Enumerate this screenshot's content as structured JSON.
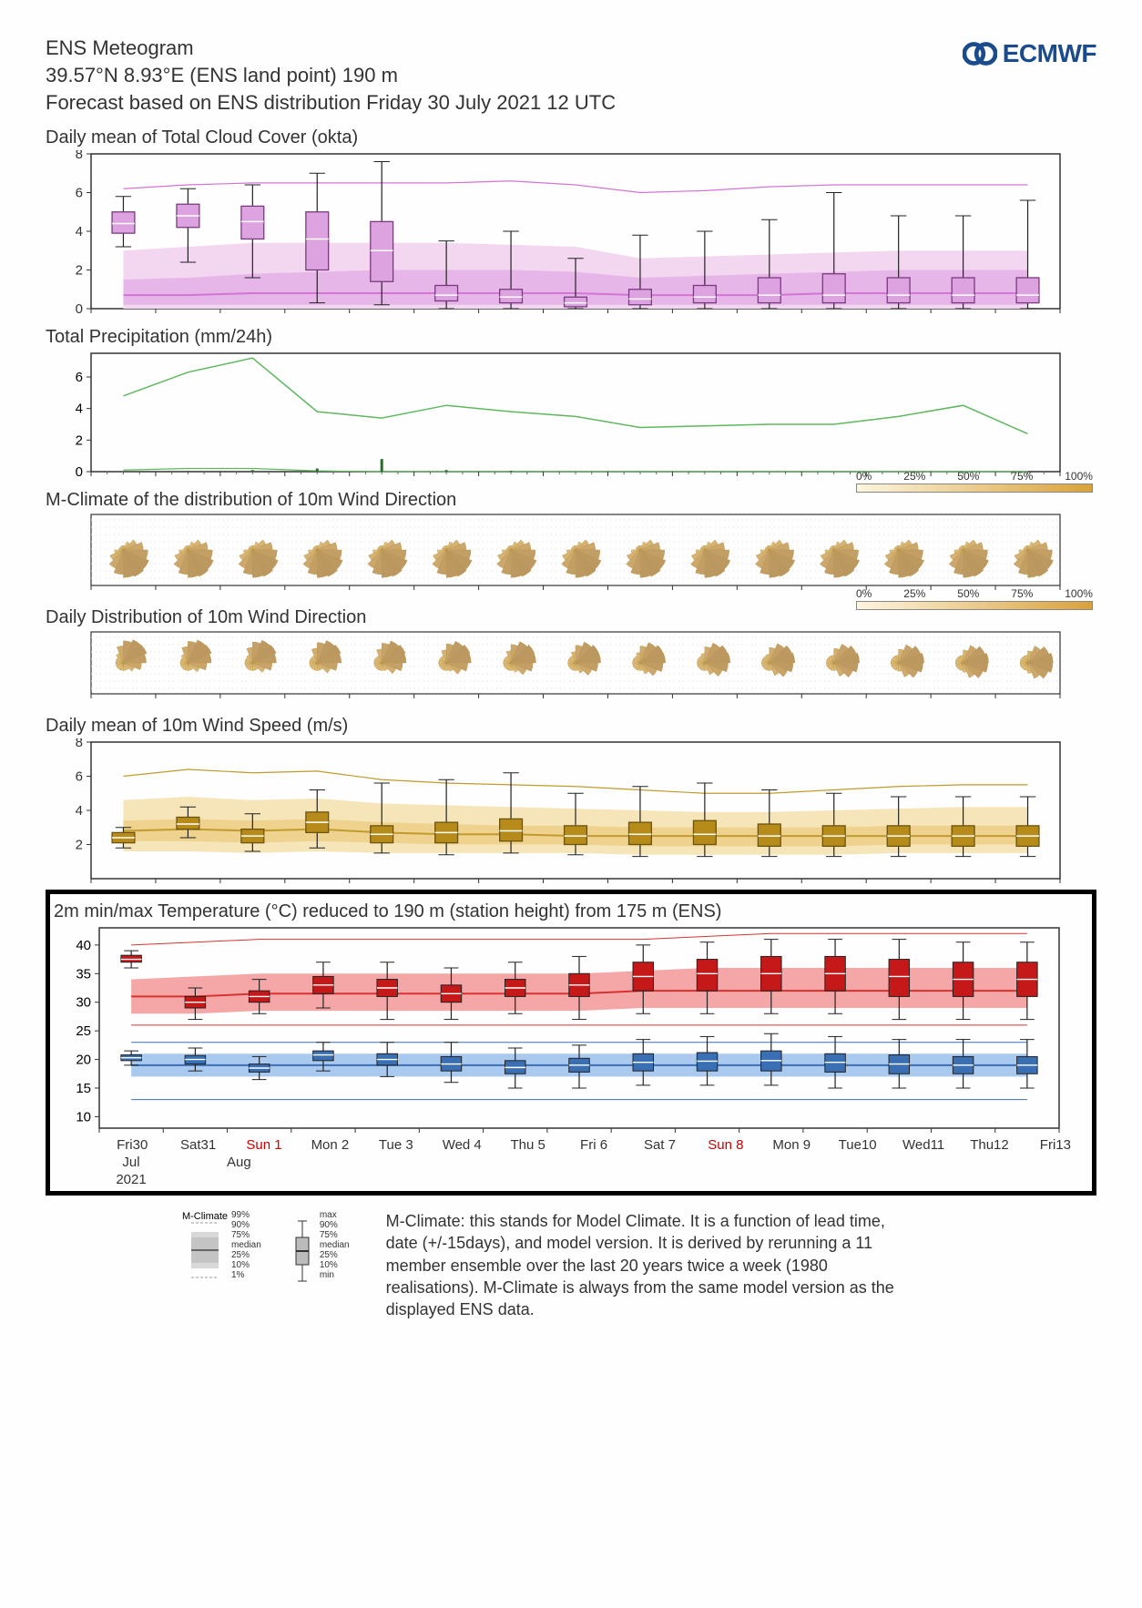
{
  "header": {
    "title1": "ENS Meteogram",
    "title2": " 39.57°N 8.93°E (ENS land point) 190 m",
    "title3": "Forecast based on ENS distribution Friday 30 July 2021 12 UTC"
  },
  "logo_text": "ECMWF",
  "gradient_legend": {
    "ticks": [
      "0%",
      "25%",
      "50%",
      "75%",
      "100%"
    ]
  },
  "xaxis": {
    "days": [
      {
        "label": "Fri30",
        "sun": false
      },
      {
        "label": "Sat31",
        "sun": false
      },
      {
        "label": "Sun 1",
        "sun": true
      },
      {
        "label": "Mon 2",
        "sun": false
      },
      {
        "label": "Tue 3",
        "sun": false
      },
      {
        "label": "Wed 4",
        "sun": false
      },
      {
        "label": "Thu 5",
        "sun": false
      },
      {
        "label": "Fri 6",
        "sun": false
      },
      {
        "label": "Sat 7",
        "sun": false
      },
      {
        "label": "Sun 8",
        "sun": true
      },
      {
        "label": "Mon 9",
        "sun": false
      },
      {
        "label": "Tue10",
        "sun": false
      },
      {
        "label": "Wed11",
        "sun": false
      },
      {
        "label": "Thu12",
        "sun": false
      },
      {
        "label": "Fri13",
        "sun": false
      }
    ],
    "months": [
      "Jul",
      "Aug"
    ],
    "year": "2021"
  },
  "cloud": {
    "title": "Daily mean of Total Cloud Cover (okta)",
    "ylim": [
      0,
      8
    ],
    "yticks": [
      0,
      2,
      4,
      6,
      8
    ],
    "colors": {
      "band_outer": "#f3d6f0",
      "band_inner": "#e6b6e8",
      "line": "#d573d6",
      "box_fill": "#dca3e0",
      "box_stroke": "#7b3a80",
      "whisker": "#333"
    },
    "climate": {
      "p99": [
        6.2,
        6.4,
        6.5,
        6.5,
        6.5,
        6.5,
        6.6,
        6.4,
        6.0,
        6.1,
        6.3,
        6.4,
        6.4,
        6.4,
        6.4
      ],
      "p90": [
        3.0,
        3.2,
        3.4,
        3.4,
        3.4,
        3.4,
        3.3,
        3.2,
        2.6,
        2.7,
        2.8,
        2.9,
        3.0,
        3.0,
        3.0
      ],
      "p75": [
        1.5,
        1.6,
        1.8,
        1.9,
        2.0,
        2.0,
        2.0,
        1.9,
        1.6,
        1.7,
        1.8,
        1.9,
        2.0,
        2.0,
        2.0
      ],
      "median": [
        0.7,
        0.7,
        0.8,
        0.8,
        0.8,
        0.8,
        0.8,
        0.8,
        0.7,
        0.7,
        0.7,
        0.8,
        0.8,
        0.8,
        0.8
      ],
      "p25": [
        0.2,
        0.2,
        0.2,
        0.2,
        0.2,
        0.2,
        0.2,
        0.2,
        0.2,
        0.2,
        0.2,
        0.2,
        0.2,
        0.2,
        0.2
      ],
      "p10": [
        0.0,
        0.0,
        0.0,
        0.0,
        0.0,
        0.0,
        0.0,
        0.0,
        0.0,
        0.0,
        0.0,
        0.0,
        0.0,
        0.0,
        0.0
      ]
    },
    "boxes": [
      {
        "min": 3.2,
        "q1": 3.9,
        "med": 4.4,
        "q3": 5.0,
        "max": 5.8
      },
      {
        "min": 2.4,
        "q1": 4.2,
        "med": 4.8,
        "q3": 5.4,
        "max": 6.2
      },
      {
        "min": 1.6,
        "q1": 3.6,
        "med": 4.5,
        "q3": 5.3,
        "max": 6.4
      },
      {
        "min": 0.3,
        "q1": 2.0,
        "med": 3.6,
        "q3": 5.0,
        "max": 7.0
      },
      {
        "min": 0.2,
        "q1": 1.4,
        "med": 3.0,
        "q3": 4.5,
        "max": 7.6
      },
      {
        "min": 0.0,
        "q1": 0.4,
        "med": 0.7,
        "q3": 1.2,
        "max": 3.5
      },
      {
        "min": 0.0,
        "q1": 0.3,
        "med": 0.6,
        "q3": 1.0,
        "max": 4.0
      },
      {
        "min": 0.0,
        "q1": 0.1,
        "med": 0.3,
        "q3": 0.6,
        "max": 2.6
      },
      {
        "min": 0.0,
        "q1": 0.2,
        "med": 0.5,
        "q3": 1.0,
        "max": 3.8
      },
      {
        "min": 0.0,
        "q1": 0.3,
        "med": 0.6,
        "q3": 1.2,
        "max": 4.0
      },
      {
        "min": 0.0,
        "q1": 0.3,
        "med": 0.7,
        "q3": 1.6,
        "max": 4.6
      },
      {
        "min": 0.0,
        "q1": 0.3,
        "med": 0.7,
        "q3": 1.8,
        "max": 6.0
      },
      {
        "min": 0.0,
        "q1": 0.3,
        "med": 0.7,
        "q3": 1.6,
        "max": 4.8
      },
      {
        "min": 0.0,
        "q1": 0.3,
        "med": 0.7,
        "q3": 1.6,
        "max": 4.8
      },
      {
        "min": 0.0,
        "q1": 0.3,
        "med": 0.7,
        "q3": 1.6,
        "max": 5.6
      }
    ]
  },
  "precip": {
    "title": "Total Precipitation (mm/24h)",
    "ylim": [
      0,
      7.5
    ],
    "yticks": [
      0,
      2,
      4,
      6
    ],
    "colors": {
      "line": "#5fb85f",
      "bar": "#2b6a2b"
    },
    "p99": [
      4.8,
      6.3,
      7.2,
      3.8,
      3.4,
      4.2,
      3.8,
      3.5,
      2.8,
      2.9,
      3.0,
      3.0,
      3.5,
      4.2,
      2.4
    ],
    "median": [
      0.1,
      0.2,
      0.2,
      0.05,
      0.0,
      0.0,
      0.0,
      0.0,
      0.0,
      0.0,
      0.0,
      0.0,
      0.0,
      0.0,
      0.0
    ],
    "bars": [
      0.0,
      0.05,
      0.1,
      0.2,
      0.8,
      0.1,
      0.05,
      0.0,
      0,
      0,
      0,
      0,
      0,
      0,
      0
    ]
  },
  "wind_mclimate": {
    "title": "M-Climate of the distribution of 10m Wind Direction"
  },
  "wind_daily": {
    "title": "Daily Distribution of 10m Wind Direction"
  },
  "wind_speed": {
    "title": "Daily mean of 10m Wind Speed (m/s)",
    "ylim": [
      0,
      8
    ],
    "yticks": [
      2,
      4,
      6,
      8
    ],
    "colors": {
      "band_outer": "#f6e5b8",
      "band_inner": "#eed28e",
      "line": "#c29b2e",
      "box_fill": "#b78b1a",
      "box_stroke": "#6b5410"
    },
    "climate": {
      "p99": [
        6.0,
        6.4,
        6.2,
        6.3,
        5.8,
        5.6,
        5.5,
        5.4,
        5.2,
        5.0,
        5.0,
        5.2,
        5.4,
        5.5,
        5.5
      ],
      "p90": [
        4.6,
        4.8,
        4.6,
        4.7,
        4.4,
        4.3,
        4.2,
        4.1,
        4.0,
        3.9,
        3.9,
        4.0,
        4.1,
        4.2,
        4.2
      ],
      "p75": [
        3.4,
        3.5,
        3.4,
        3.5,
        3.3,
        3.2,
        3.1,
        3.1,
        3.0,
        3.0,
        3.0,
        3.0,
        3.1,
        3.1,
        3.1
      ],
      "median": [
        2.8,
        2.9,
        2.8,
        2.9,
        2.7,
        2.6,
        2.6,
        2.5,
        2.5,
        2.5,
        2.5,
        2.5,
        2.5,
        2.5,
        2.5
      ],
      "p25": [
        2.2,
        2.2,
        2.1,
        2.2,
        2.1,
        2.0,
        2.0,
        2.0,
        1.9,
        1.9,
        1.9,
        1.9,
        2.0,
        2.0,
        2.0
      ],
      "p10": [
        1.6,
        1.6,
        1.5,
        1.6,
        1.5,
        1.5,
        1.5,
        1.5,
        1.4,
        1.4,
        1.4,
        1.4,
        1.5,
        1.5,
        1.5
      ]
    },
    "boxes": [
      {
        "min": 1.8,
        "q1": 2.1,
        "med": 2.4,
        "q3": 2.7,
        "max": 3.0
      },
      {
        "min": 2.4,
        "q1": 2.9,
        "med": 3.2,
        "q3": 3.6,
        "max": 4.2
      },
      {
        "min": 1.6,
        "q1": 2.1,
        "med": 2.5,
        "q3": 2.9,
        "max": 3.8
      },
      {
        "min": 1.8,
        "q1": 2.7,
        "med": 3.3,
        "q3": 3.9,
        "max": 5.2
      },
      {
        "min": 1.5,
        "q1": 2.1,
        "med": 2.6,
        "q3": 3.1,
        "max": 5.6
      },
      {
        "min": 1.4,
        "q1": 2.1,
        "med": 2.7,
        "q3": 3.3,
        "max": 5.8
      },
      {
        "min": 1.5,
        "q1": 2.2,
        "med": 2.8,
        "q3": 3.5,
        "max": 6.2
      },
      {
        "min": 1.4,
        "q1": 2.0,
        "med": 2.5,
        "q3": 3.1,
        "max": 5.0
      },
      {
        "min": 1.3,
        "q1": 2.0,
        "med": 2.6,
        "q3": 3.3,
        "max": 5.4
      },
      {
        "min": 1.3,
        "q1": 2.0,
        "med": 2.6,
        "q3": 3.4,
        "max": 5.6
      },
      {
        "min": 1.3,
        "q1": 1.9,
        "med": 2.5,
        "q3": 3.2,
        "max": 5.2
      },
      {
        "min": 1.3,
        "q1": 1.9,
        "med": 2.5,
        "q3": 3.1,
        "max": 5.0
      },
      {
        "min": 1.3,
        "q1": 1.9,
        "med": 2.5,
        "q3": 3.1,
        "max": 4.8
      },
      {
        "min": 1.3,
        "q1": 1.9,
        "med": 2.5,
        "q3": 3.1,
        "max": 4.8
      },
      {
        "min": 1.3,
        "q1": 1.9,
        "med": 2.5,
        "q3": 3.1,
        "max": 4.8
      }
    ]
  },
  "temp": {
    "title": "2m min/max Temperature (°C) reduced to 190 m (station height) from 175 m (ENS)",
    "ylim": [
      8,
      43
    ],
    "yticks": [
      10,
      15,
      20,
      25,
      30,
      35,
      40
    ],
    "colors": {
      "max_band_outer": "#fbd4d4",
      "max_band_inner": "#f5a7a7",
      "max_line": "#d83232",
      "max_box": "#c51818",
      "min_band_outer": "#d4e4f9",
      "min_band_inner": "#a9c9ef",
      "min_line": "#3b6fb5",
      "min_box": "#3a6fb3"
    },
    "max_climate": {
      "p99": [
        40,
        40.5,
        41,
        41,
        41,
        41,
        41,
        41,
        41,
        41.5,
        42,
        42,
        42,
        42,
        42
      ],
      "p75": [
        34,
        34.5,
        35,
        35,
        35,
        35,
        35,
        35,
        35.5,
        36,
        36,
        36,
        36,
        36,
        36
      ],
      "median": [
        31,
        31,
        31.5,
        31.5,
        31.5,
        31.5,
        31.5,
        31.5,
        32,
        32,
        32,
        32,
        32,
        32,
        32
      ],
      "p25": [
        28,
        28,
        28.5,
        28.5,
        28.5,
        28.5,
        28.5,
        28.5,
        29,
        29,
        29,
        29,
        29,
        29,
        29
      ],
      "p1": [
        26,
        26,
        26,
        26,
        26,
        26,
        26,
        26,
        26,
        26,
        26,
        26,
        26,
        26,
        26
      ]
    },
    "min_climate": {
      "p99": [
        23,
        23,
        23,
        23,
        23,
        23,
        23,
        23,
        23,
        23,
        23,
        23,
        23,
        23,
        23
      ],
      "p75": [
        21,
        21,
        21,
        21,
        21,
        21,
        21,
        21,
        21,
        21,
        21,
        21,
        21,
        21,
        21
      ],
      "median": [
        19,
        19,
        19,
        19,
        19,
        19,
        19,
        19,
        19,
        19,
        19,
        19,
        19,
        19,
        19
      ],
      "p25": [
        17,
        17,
        17,
        17,
        17,
        17,
        17,
        17,
        17,
        17,
        17,
        17,
        17,
        17,
        17
      ],
      "p1": [
        13,
        13,
        13,
        13,
        13,
        13,
        13,
        13,
        13,
        13,
        13,
        13,
        13,
        13,
        13
      ]
    },
    "max_boxes": [
      {
        "min": 36,
        "q1": 37,
        "med": 37.5,
        "q3": 38.2,
        "max": 39
      },
      {
        "min": 27,
        "q1": 29,
        "med": 30,
        "q3": 31,
        "max": 32.5
      },
      {
        "min": 28,
        "q1": 30,
        "med": 31,
        "q3": 32,
        "max": 34
      },
      {
        "min": 29,
        "q1": 31.5,
        "med": 33,
        "q3": 34.5,
        "max": 37
      },
      {
        "min": 27,
        "q1": 31,
        "med": 32.5,
        "q3": 34,
        "max": 37
      },
      {
        "min": 27,
        "q1": 30,
        "med": 31.5,
        "q3": 33,
        "max": 36
      },
      {
        "min": 28,
        "q1": 31,
        "med": 32.5,
        "q3": 34,
        "max": 37
      },
      {
        "min": 27,
        "q1": 31,
        "med": 33,
        "q3": 35,
        "max": 38
      },
      {
        "min": 28,
        "q1": 32,
        "med": 34.5,
        "q3": 37,
        "max": 40
      },
      {
        "min": 28,
        "q1": 32,
        "med": 35,
        "q3": 37.5,
        "max": 40.5
      },
      {
        "min": 28,
        "q1": 32,
        "med": 35,
        "q3": 38,
        "max": 41
      },
      {
        "min": 28,
        "q1": 32,
        "med": 35,
        "q3": 38,
        "max": 41
      },
      {
        "min": 27,
        "q1": 31,
        "med": 34.5,
        "q3": 37.5,
        "max": 41
      },
      {
        "min": 27,
        "q1": 31,
        "med": 34,
        "q3": 37,
        "max": 40.5
      },
      {
        "min": 27,
        "q1": 31,
        "med": 34,
        "q3": 37,
        "max": 40.5
      }
    ],
    "min_boxes": [
      {
        "min": 19,
        "q1": 19.8,
        "med": 20.3,
        "q3": 20.8,
        "max": 21.5
      },
      {
        "min": 18,
        "q1": 19.2,
        "med": 20,
        "q3": 20.7,
        "max": 22
      },
      {
        "min": 16.5,
        "q1": 17.8,
        "med": 18.5,
        "q3": 19.2,
        "max": 20.5
      },
      {
        "min": 18,
        "q1": 19.8,
        "med": 20.8,
        "q3": 21.5,
        "max": 23
      },
      {
        "min": 17,
        "q1": 19,
        "med": 20,
        "q3": 21,
        "max": 23
      },
      {
        "min": 16,
        "q1": 18,
        "med": 19.2,
        "q3": 20.5,
        "max": 23
      },
      {
        "min": 15,
        "q1": 17.5,
        "med": 18.6,
        "q3": 19.8,
        "max": 22
      },
      {
        "min": 15,
        "q1": 17.8,
        "med": 19,
        "q3": 20.2,
        "max": 22.5
      },
      {
        "min": 15.5,
        "q1": 18,
        "med": 19.5,
        "q3": 21,
        "max": 23.5
      },
      {
        "min": 15.5,
        "q1": 18,
        "med": 19.7,
        "q3": 21.2,
        "max": 24
      },
      {
        "min": 15.5,
        "q1": 18,
        "med": 19.8,
        "q3": 21.5,
        "max": 24.5
      },
      {
        "min": 15,
        "q1": 17.8,
        "med": 19.5,
        "q3": 21,
        "max": 24
      },
      {
        "min": 15,
        "q1": 17.5,
        "med": 19.2,
        "q3": 20.8,
        "max": 23.5
      },
      {
        "min": 15,
        "q1": 17.5,
        "med": 19,
        "q3": 20.5,
        "max": 23.5
      },
      {
        "min": 15,
        "q1": 17.5,
        "med": 19,
        "q3": 20.5,
        "max": 23.5
      }
    ]
  },
  "legend": {
    "mc_title": "M-Climate",
    "mc_labels": [
      "99%",
      "90%",
      "75%",
      "median",
      "25%",
      "10%",
      "1%"
    ],
    "box_labels": [
      "max",
      "90%",
      "75%",
      "median",
      "25%",
      "10%",
      "min"
    ]
  },
  "footer_text": "M-Climate: this stands for Model Climate. It is a function of lead time, date (+/-15days), and model version. It is derived by rerunning a 11 member ensemble over the last 20 years twice a week (1980 realisations). M-Climate is always from the same model version as the displayed ENS data."
}
